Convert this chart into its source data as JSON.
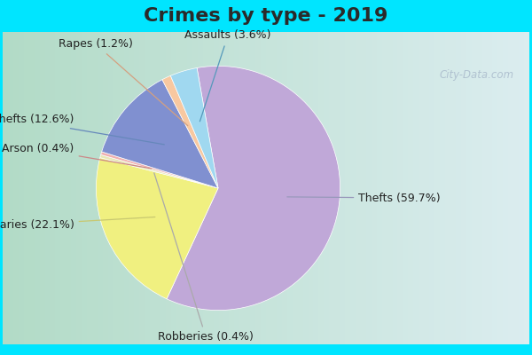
{
  "title": "Crimes by type - 2019",
  "labels": [
    "Thefts",
    "Burglaries",
    "Robberies",
    "Arson",
    "Auto thefts",
    "Rapes",
    "Assaults"
  ],
  "percentages": [
    59.7,
    22.1,
    0.4,
    0.4,
    12.6,
    1.2,
    3.6
  ],
  "colors": [
    "#c0a8d8",
    "#f0f080",
    "#e8e8b8",
    "#f0b0b0",
    "#8090d0",
    "#f8c8a0",
    "#a0d8f0"
  ],
  "background_outer": "#00e5ff",
  "title_fontsize": 16,
  "label_fontsize": 9,
  "watermark": "City-Data.com"
}
